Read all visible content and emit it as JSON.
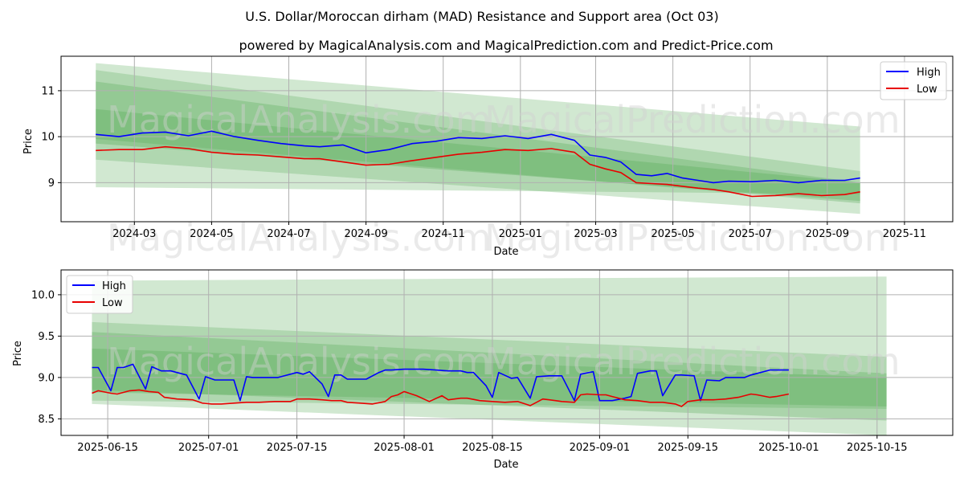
{
  "title": "U.S. Dollar/Moroccan dirham (MAD) Resistance and Support area (Oct 03)",
  "subtitle": "powered by MagicalAnalysis.com and MagicalPrediction.com and Predict-Price.com",
  "watermark": {
    "left": "MagicalAnalysis.com",
    "right": "MagicalPrediction.com"
  },
  "colors": {
    "high": "#0000ff",
    "low": "#e80000",
    "band": "#5aab5a",
    "grid": "#b0b0b0"
  },
  "chart_data": [
    {
      "type": "line",
      "xlabel": "Date",
      "ylabel": "Price",
      "ylim": [
        8.15,
        11.75
      ],
      "yticks": [
        9,
        10,
        11
      ],
      "xticks": [
        {
          "label": "2024-03",
          "x": 0.4
        },
        {
          "label": "2024-05",
          "x": 2.4
        },
        {
          "label": "2024-07",
          "x": 4.4
        },
        {
          "label": "2024-09",
          "x": 6.4
        },
        {
          "label": "2024-11",
          "x": 8.4
        },
        {
          "label": "2025-01",
          "x": 10.4
        },
        {
          "label": "2025-03",
          "x": 12.35
        },
        {
          "label": "2025-05",
          "x": 14.35
        },
        {
          "label": "2025-07",
          "x": 16.35
        },
        {
          "label": "2025-09",
          "x": 18.35
        },
        {
          "label": "2025-11",
          "x": 20.35
        }
      ],
      "xlim": [
        -1.5,
        21.6
      ],
      "legend": {
        "position": "top-right",
        "labels": [
          "High",
          "Low"
        ]
      },
      "bands": [
        {
          "x": [
            -0.6,
            19.2
          ],
          "upper": [
            11.6,
            10.22
          ],
          "lower": [
            8.9,
            8.75
          ],
          "opacity": 0.28
        },
        {
          "x": [
            -0.6,
            19.2
          ],
          "upper": [
            11.45,
            9.25
          ],
          "lower": [
            9.5,
            8.32
          ],
          "opacity": 0.28
        },
        {
          "x": [
            -0.6,
            19.2
          ],
          "upper": [
            11.2,
            9.0
          ],
          "lower": [
            9.95,
            8.55
          ],
          "opacity": 0.32
        },
        {
          "x": [
            -0.6,
            19.2
          ],
          "upper": [
            10.6,
            9.0
          ],
          "lower": [
            9.85,
            8.6
          ],
          "opacity": 0.35
        }
      ],
      "series": [
        {
          "name": "High",
          "x": [
            -0.6,
            0.0,
            0.6,
            1.2,
            1.8,
            2.4,
            3.0,
            3.6,
            4.2,
            4.8,
            5.2,
            5.8,
            6.4,
            7.0,
            7.6,
            8.2,
            8.8,
            9.4,
            10.0,
            10.6,
            11.2,
            11.8,
            12.2,
            12.6,
            13.0,
            13.4,
            13.8,
            14.2,
            14.6,
            15.0,
            15.4,
            15.8,
            16.4,
            17.0,
            17.6,
            18.2,
            18.8,
            19.2
          ],
          "values": [
            10.05,
            10.0,
            10.08,
            10.1,
            10.02,
            10.12,
            10.0,
            9.92,
            9.85,
            9.8,
            9.78,
            9.82,
            9.65,
            9.72,
            9.85,
            9.9,
            9.98,
            9.96,
            10.02,
            9.96,
            10.05,
            9.92,
            9.6,
            9.55,
            9.45,
            9.18,
            9.15,
            9.2,
            9.1,
            9.05,
            9.0,
            9.03,
            9.02,
            9.05,
            9.0,
            9.05,
            9.05,
            9.1
          ]
        },
        {
          "name": "Low",
          "x": [
            -0.6,
            0.0,
            0.6,
            1.2,
            1.8,
            2.4,
            3.0,
            3.6,
            4.2,
            4.8,
            5.2,
            5.8,
            6.4,
            7.0,
            7.6,
            8.2,
            8.8,
            9.4,
            10.0,
            10.6,
            11.2,
            11.8,
            12.2,
            12.6,
            13.0,
            13.4,
            13.8,
            14.2,
            14.6,
            15.0,
            15.4,
            15.8,
            16.4,
            17.0,
            17.6,
            18.2,
            18.8,
            19.2
          ],
          "values": [
            9.7,
            9.72,
            9.72,
            9.78,
            9.74,
            9.66,
            9.62,
            9.6,
            9.56,
            9.52,
            9.52,
            9.45,
            9.38,
            9.4,
            9.48,
            9.55,
            9.62,
            9.66,
            9.72,
            9.7,
            9.74,
            9.66,
            9.4,
            9.3,
            9.22,
            9.0,
            8.98,
            8.96,
            8.92,
            8.88,
            8.85,
            8.8,
            8.7,
            8.72,
            8.76,
            8.72,
            8.74,
            8.8
          ]
        }
      ]
    },
    {
      "type": "line",
      "xlabel": "Date",
      "ylabel": "Price",
      "ylim": [
        8.3,
        10.3
      ],
      "yticks": [
        8.5,
        9.0,
        9.5,
        10.0
      ],
      "yticklabels": [
        "8.5",
        "9.0",
        "9.5",
        "10.0"
      ],
      "xticks": [
        {
          "label": "2025-06-15",
          "x": 0
        },
        {
          "label": "2025-07-01",
          "x": 16
        },
        {
          "label": "2025-07-15",
          "x": 30
        },
        {
          "label": "2025-08-01",
          "x": 47
        },
        {
          "label": "2025-08-15",
          "x": 61
        },
        {
          "label": "2025-09-01",
          "x": 78
        },
        {
          "label": "2025-09-15",
          "x": 92
        },
        {
          "label": "2025-10-01",
          "x": 108
        },
        {
          "label": "2025-10-15",
          "x": 122
        }
      ],
      "xlim": [
        -7.4,
        134
      ],
      "legend": {
        "position": "top-left",
        "labels": [
          "High",
          "Low"
        ]
      },
      "bands": [
        {
          "x": [
            -2.5,
            123.5
          ],
          "upper": [
            10.17,
            10.22
          ],
          "lower": [
            8.72,
            8.62
          ],
          "opacity": 0.28
        },
        {
          "x": [
            -2.5,
            123.5
          ],
          "upper": [
            9.67,
            9.25
          ],
          "lower": [
            8.68,
            8.3
          ],
          "opacity": 0.28
        },
        {
          "x": [
            -2.5,
            123.5
          ],
          "upper": [
            9.55,
            9.05
          ],
          "lower": [
            8.85,
            8.48
          ],
          "opacity": 0.32
        },
        {
          "x": [
            -2.5,
            123.5
          ],
          "upper": [
            9.35,
            9.0
          ],
          "lower": [
            8.82,
            8.65
          ],
          "opacity": 0.35
        }
      ],
      "series": [
        {
          "name": "High",
          "x": [
            -2.5,
            -1.5,
            0.5,
            1.5,
            2.5,
            4.0,
            6.0,
            7.0,
            8.5,
            10.0,
            12.5,
            14.5,
            15.5,
            17.0,
            20.0,
            21.0,
            22.0,
            23.0,
            25.0,
            27.0,
            30.0,
            31.0,
            32.0,
            34.0,
            35.0,
            36.0,
            37.0,
            38.0,
            41.0,
            43.0,
            44.0,
            45.0,
            47.0,
            50.0,
            52.0,
            54.0,
            56.0,
            57.0,
            58.0,
            60.0,
            61.0,
            62.0,
            64.0,
            65.0,
            67.0,
            68.0,
            70.0,
            71.0,
            72.0,
            74.0,
            75.0,
            77.0,
            78.0,
            79.0,
            80.0,
            82.0,
            83.0,
            84.0,
            86.0,
            87.0,
            88.0,
            90.0,
            91.0,
            93.0,
            94.0,
            95.0,
            97.0,
            98.0,
            99.0,
            101.0,
            102.0,
            103.0,
            105.0,
            106.0,
            108.0
          ],
          "values": [
            9.12,
            9.12,
            8.84,
            9.12,
            9.12,
            9.16,
            8.86,
            9.13,
            9.08,
            9.08,
            9.03,
            8.74,
            9.01,
            8.97,
            8.97,
            8.72,
            9.01,
            9.0,
            9.0,
            9.0,
            9.06,
            9.04,
            9.07,
            8.92,
            8.77,
            9.03,
            9.03,
            8.98,
            8.98,
            9.06,
            9.09,
            9.09,
            9.1,
            9.1,
            9.09,
            9.08,
            9.08,
            9.06,
            9.06,
            8.9,
            8.76,
            9.06,
            8.99,
            9.0,
            8.75,
            9.01,
            9.02,
            9.02,
            9.02,
            8.72,
            9.04,
            9.07,
            8.72,
            8.72,
            8.72,
            8.75,
            8.77,
            9.05,
            9.08,
            9.08,
            8.78,
            9.03,
            9.03,
            9.02,
            8.72,
            8.97,
            8.96,
            9.0,
            9.0,
            9.0,
            9.03,
            9.05,
            9.09,
            9.09,
            9.09
          ]
        },
        {
          "name": "Low",
          "x": [
            -2.5,
            -1.5,
            0.5,
            1.5,
            3.5,
            5.0,
            6.5,
            8.0,
            9.0,
            11.0,
            13.5,
            15.0,
            16.5,
            18.0,
            20.0,
            22.0,
            24.0,
            26.5,
            29.0,
            30.0,
            32.0,
            34.0,
            35.5,
            37.0,
            38.0,
            40.0,
            42.0,
            44.0,
            45.0,
            46.0,
            47.0,
            49.0,
            51.0,
            53.0,
            54.0,
            56.0,
            57.0,
            59.0,
            61.0,
            63.0,
            65.0,
            67.0,
            69.0,
            70.0,
            71.0,
            72.0,
            74.0,
            75.0,
            76.0,
            78.0,
            79.0,
            80.0,
            82.0,
            84.0,
            86.0,
            87.0,
            88.0,
            90.0,
            91.0,
            92.0,
            94.0,
            95.0,
            96.0,
            98.0,
            100.0,
            102.0,
            103.0,
            105.0,
            106.0,
            108.0
          ],
          "values": [
            8.81,
            8.84,
            8.81,
            8.8,
            8.84,
            8.85,
            8.83,
            8.82,
            8.76,
            8.74,
            8.73,
            8.69,
            8.68,
            8.68,
            8.69,
            8.7,
            8.7,
            8.71,
            8.71,
            8.74,
            8.74,
            8.73,
            8.72,
            8.72,
            8.7,
            8.69,
            8.68,
            8.71,
            8.77,
            8.79,
            8.83,
            8.78,
            8.71,
            8.78,
            8.73,
            8.75,
            8.75,
            8.72,
            8.71,
            8.7,
            8.71,
            8.66,
            8.74,
            8.73,
            8.72,
            8.71,
            8.7,
            8.79,
            8.8,
            8.79,
            8.79,
            8.77,
            8.73,
            8.72,
            8.7,
            8.7,
            8.7,
            8.68,
            8.65,
            8.71,
            8.73,
            8.73,
            8.73,
            8.74,
            8.76,
            8.8,
            8.79,
            8.76,
            8.77,
            8.8
          ]
        }
      ]
    }
  ]
}
